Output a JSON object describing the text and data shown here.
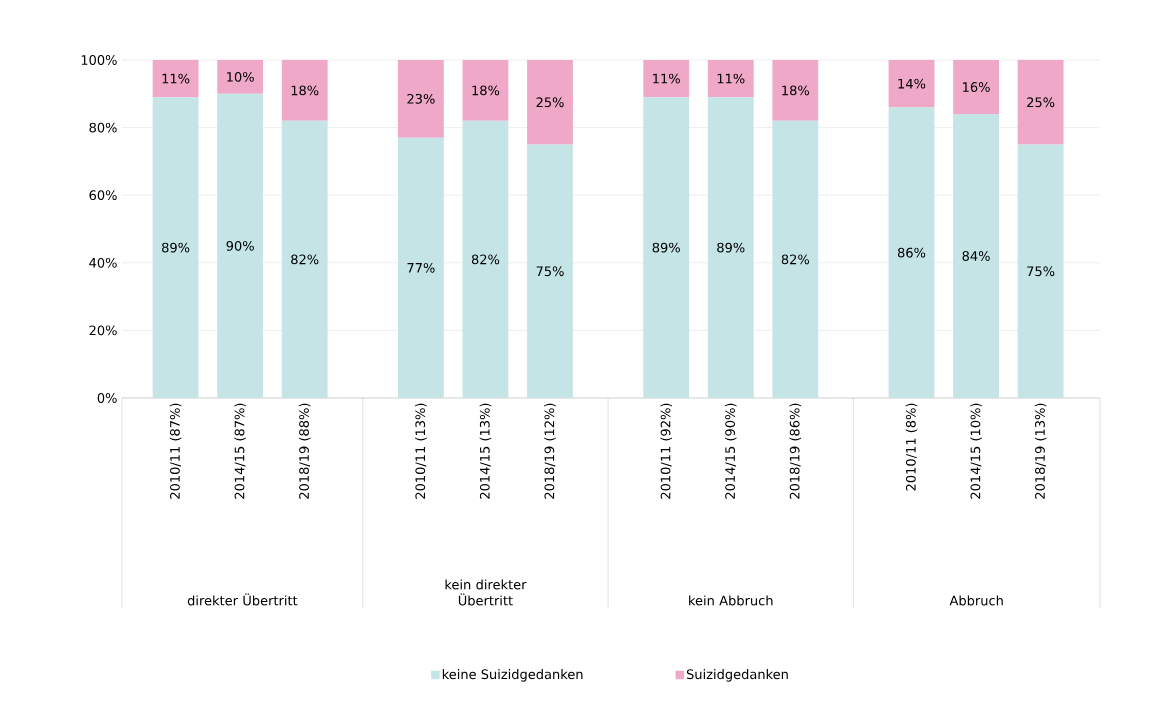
{
  "chart_data": {
    "type": "bar",
    "stacked": true,
    "categories": [
      "2010/11 (87%)",
      "2014/15 (87%)",
      "2018/19 (88%)",
      "2010/11 (13%)",
      "2014/15 (13%)",
      "2018/19 (12%)",
      "2010/11 (92%)",
      "2014/15 (90%)",
      "2018/19 (86%)",
      "2010/11 (8%)",
      "2014/15 (10%)",
      "2018/19 (13%)"
    ],
    "series": [
      {
        "name": "keine Suizidgedanken",
        "color": "#c5e4e6",
        "values": [
          89,
          90,
          82,
          77,
          82,
          75,
          89,
          89,
          82,
          86,
          84,
          75
        ],
        "value_labels": [
          "89%",
          "90%",
          "82%",
          "77%",
          "82%",
          "75%",
          "89%",
          "89%",
          "82%",
          "86%",
          "84%",
          "75%"
        ]
      },
      {
        "name": "Suizidgedanken",
        "color": "#f0a8c8",
        "values": [
          11,
          10,
          18,
          23,
          18,
          25,
          11,
          11,
          18,
          14,
          16,
          25
        ],
        "value_labels": [
          "11%",
          "10%",
          "18%",
          "23%",
          "18%",
          "25%",
          "11%",
          "11%",
          "18%",
          "14%",
          "16%",
          "25%"
        ]
      }
    ],
    "annotations": [
      "direkter Übertritt",
      "kein direkter Übertritt",
      "kein Abbruch",
      "Abbruch"
    ],
    "ylim": [
      0,
      100
    ],
    "yticks": [
      {
        "value": 0,
        "label": "0%"
      },
      {
        "value": 20,
        "label": "20%"
      },
      {
        "value": 40,
        "label": "40%"
      },
      {
        "value": 60,
        "label": "60%"
      },
      {
        "value": 80,
        "label": "80%"
      },
      {
        "value": 100,
        "label": "100%"
      }
    ],
    "grid": "y",
    "legend": "bottom"
  }
}
